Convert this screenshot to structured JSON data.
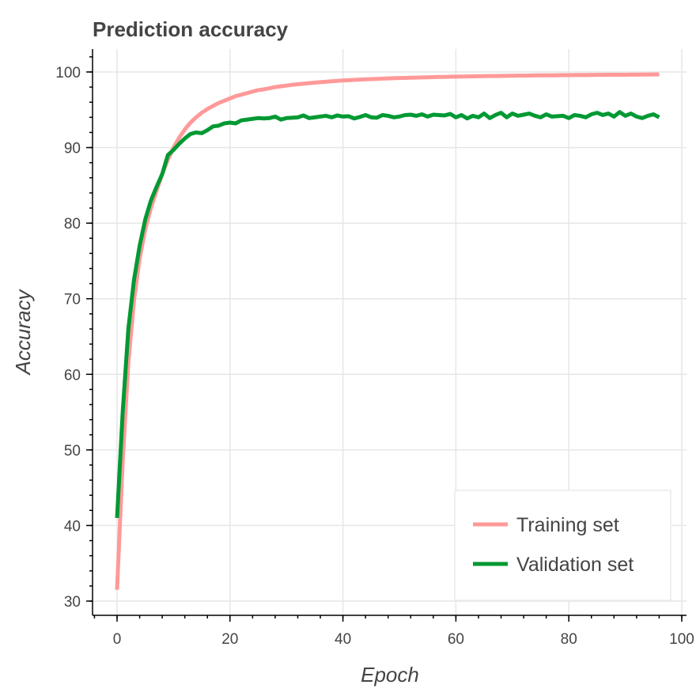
{
  "chart_data": {
    "type": "line",
    "title": "Prediction accuracy",
    "xlabel": "Epoch",
    "ylabel": "Accuracy",
    "xlim": [
      -4,
      100
    ],
    "ylim": [
      28,
      103
    ],
    "x_ticks": [
      0,
      20,
      40,
      60,
      80,
      100
    ],
    "x_tick_labels": [
      "0",
      "20",
      "40",
      "60",
      "80",
      "100"
    ],
    "y_ticks": [
      30,
      40,
      50,
      60,
      70,
      80,
      90,
      100
    ],
    "y_tick_labels": [
      "30",
      "40",
      "50",
      "60",
      "70",
      "80",
      "90",
      "100"
    ],
    "grid": true,
    "legend_position": "bottom-right",
    "series": [
      {
        "name": "Training set",
        "color": "#ff9999",
        "x": [
          0,
          1,
          2,
          3,
          4,
          5,
          6,
          7,
          8,
          9,
          10,
          11,
          12,
          13,
          14,
          15,
          16,
          17,
          18,
          19,
          20,
          21,
          22,
          23,
          24,
          25,
          26,
          27,
          28,
          29,
          30,
          31,
          32,
          33,
          34,
          35,
          36,
          37,
          38,
          39,
          40,
          41,
          42,
          43,
          44,
          45,
          46,
          47,
          48,
          49,
          50,
          51,
          52,
          53,
          54,
          55,
          56,
          57,
          58,
          59,
          60,
          61,
          62,
          63,
          64,
          65,
          66,
          67,
          68,
          69,
          70,
          71,
          72,
          73,
          74,
          75,
          76,
          77,
          78,
          79,
          80,
          81,
          82,
          83,
          84,
          85,
          86,
          87,
          88,
          89,
          90,
          91,
          92,
          93,
          94,
          95,
          96
        ],
        "values": [
          31.5,
          48.5,
          61.5,
          69.8,
          75.3,
          79.2,
          82.0,
          84.3,
          86.5,
          88.4,
          90.0,
          91.3,
          92.4,
          93.3,
          94.0,
          94.6,
          95.1,
          95.5,
          95.9,
          96.2,
          96.5,
          96.8,
          97.0,
          97.2,
          97.4,
          97.6,
          97.7,
          97.85,
          98.0,
          98.1,
          98.2,
          98.3,
          98.38,
          98.45,
          98.52,
          98.59,
          98.65,
          98.71,
          98.77,
          98.82,
          98.87,
          98.91,
          98.95,
          98.99,
          99.03,
          99.06,
          99.09,
          99.12,
          99.15,
          99.18,
          99.2,
          99.22,
          99.24,
          99.26,
          99.28,
          99.3,
          99.32,
          99.34,
          99.35,
          99.37,
          99.38,
          99.4,
          99.41,
          99.42,
          99.44,
          99.45,
          99.46,
          99.47,
          99.48,
          99.49,
          99.5,
          99.51,
          99.52,
          99.53,
          99.54,
          99.55,
          99.55,
          99.56,
          99.57,
          99.58,
          99.58,
          99.59,
          99.6,
          99.6,
          99.61,
          99.62,
          99.62,
          99.63,
          99.63,
          99.64,
          99.64,
          99.65,
          99.65,
          99.66,
          99.66,
          99.67,
          99.67
        ]
      },
      {
        "name": "Validation set",
        "color": "#009933",
        "x": [
          0,
          1,
          2,
          3,
          4,
          5,
          6,
          7,
          8,
          9,
          10,
          11,
          12,
          13,
          14,
          15,
          16,
          17,
          18,
          19,
          20,
          21,
          22,
          23,
          24,
          25,
          26,
          27,
          28,
          29,
          30,
          31,
          32,
          33,
          34,
          35,
          36,
          37,
          38,
          39,
          40,
          41,
          42,
          43,
          44,
          45,
          46,
          47,
          48,
          49,
          50,
          51,
          52,
          53,
          54,
          55,
          56,
          57,
          58,
          59,
          60,
          61,
          62,
          63,
          64,
          65,
          66,
          67,
          68,
          69,
          70,
          71,
          72,
          73,
          74,
          75,
          76,
          77,
          78,
          79,
          80,
          81,
          82,
          83,
          84,
          85,
          86,
          87,
          88,
          89,
          90,
          91,
          92,
          93,
          94,
          95,
          96
        ],
        "values": [
          41.0,
          55.0,
          66.0,
          72.5,
          77.0,
          80.5,
          83.0,
          84.8,
          86.5,
          89.0,
          89.7,
          90.5,
          91.2,
          91.8,
          92.0,
          91.9,
          92.3,
          92.8,
          92.9,
          93.2,
          93.3,
          93.2,
          93.6,
          93.7,
          93.8,
          93.9,
          93.85,
          93.9,
          94.1,
          93.7,
          93.9,
          93.95,
          94.0,
          94.25,
          93.9,
          94.0,
          94.1,
          94.2,
          94.0,
          94.25,
          94.1,
          94.15,
          93.85,
          94.05,
          94.3,
          94.0,
          93.95,
          94.3,
          94.2,
          94.0,
          94.1,
          94.3,
          94.35,
          94.2,
          94.4,
          94.1,
          94.35,
          94.3,
          94.25,
          94.45,
          94.0,
          94.3,
          93.85,
          94.2,
          94.0,
          94.5,
          93.9,
          94.3,
          94.6,
          94.0,
          94.5,
          94.2,
          94.35,
          94.5,
          94.2,
          94.0,
          94.4,
          94.1,
          94.15,
          94.2,
          93.9,
          94.3,
          94.2,
          94.0,
          94.4,
          94.6,
          94.3,
          94.5,
          94.1,
          94.7,
          94.2,
          94.5,
          94.1,
          93.9,
          94.2,
          94.4,
          94.0
        ]
      }
    ]
  }
}
